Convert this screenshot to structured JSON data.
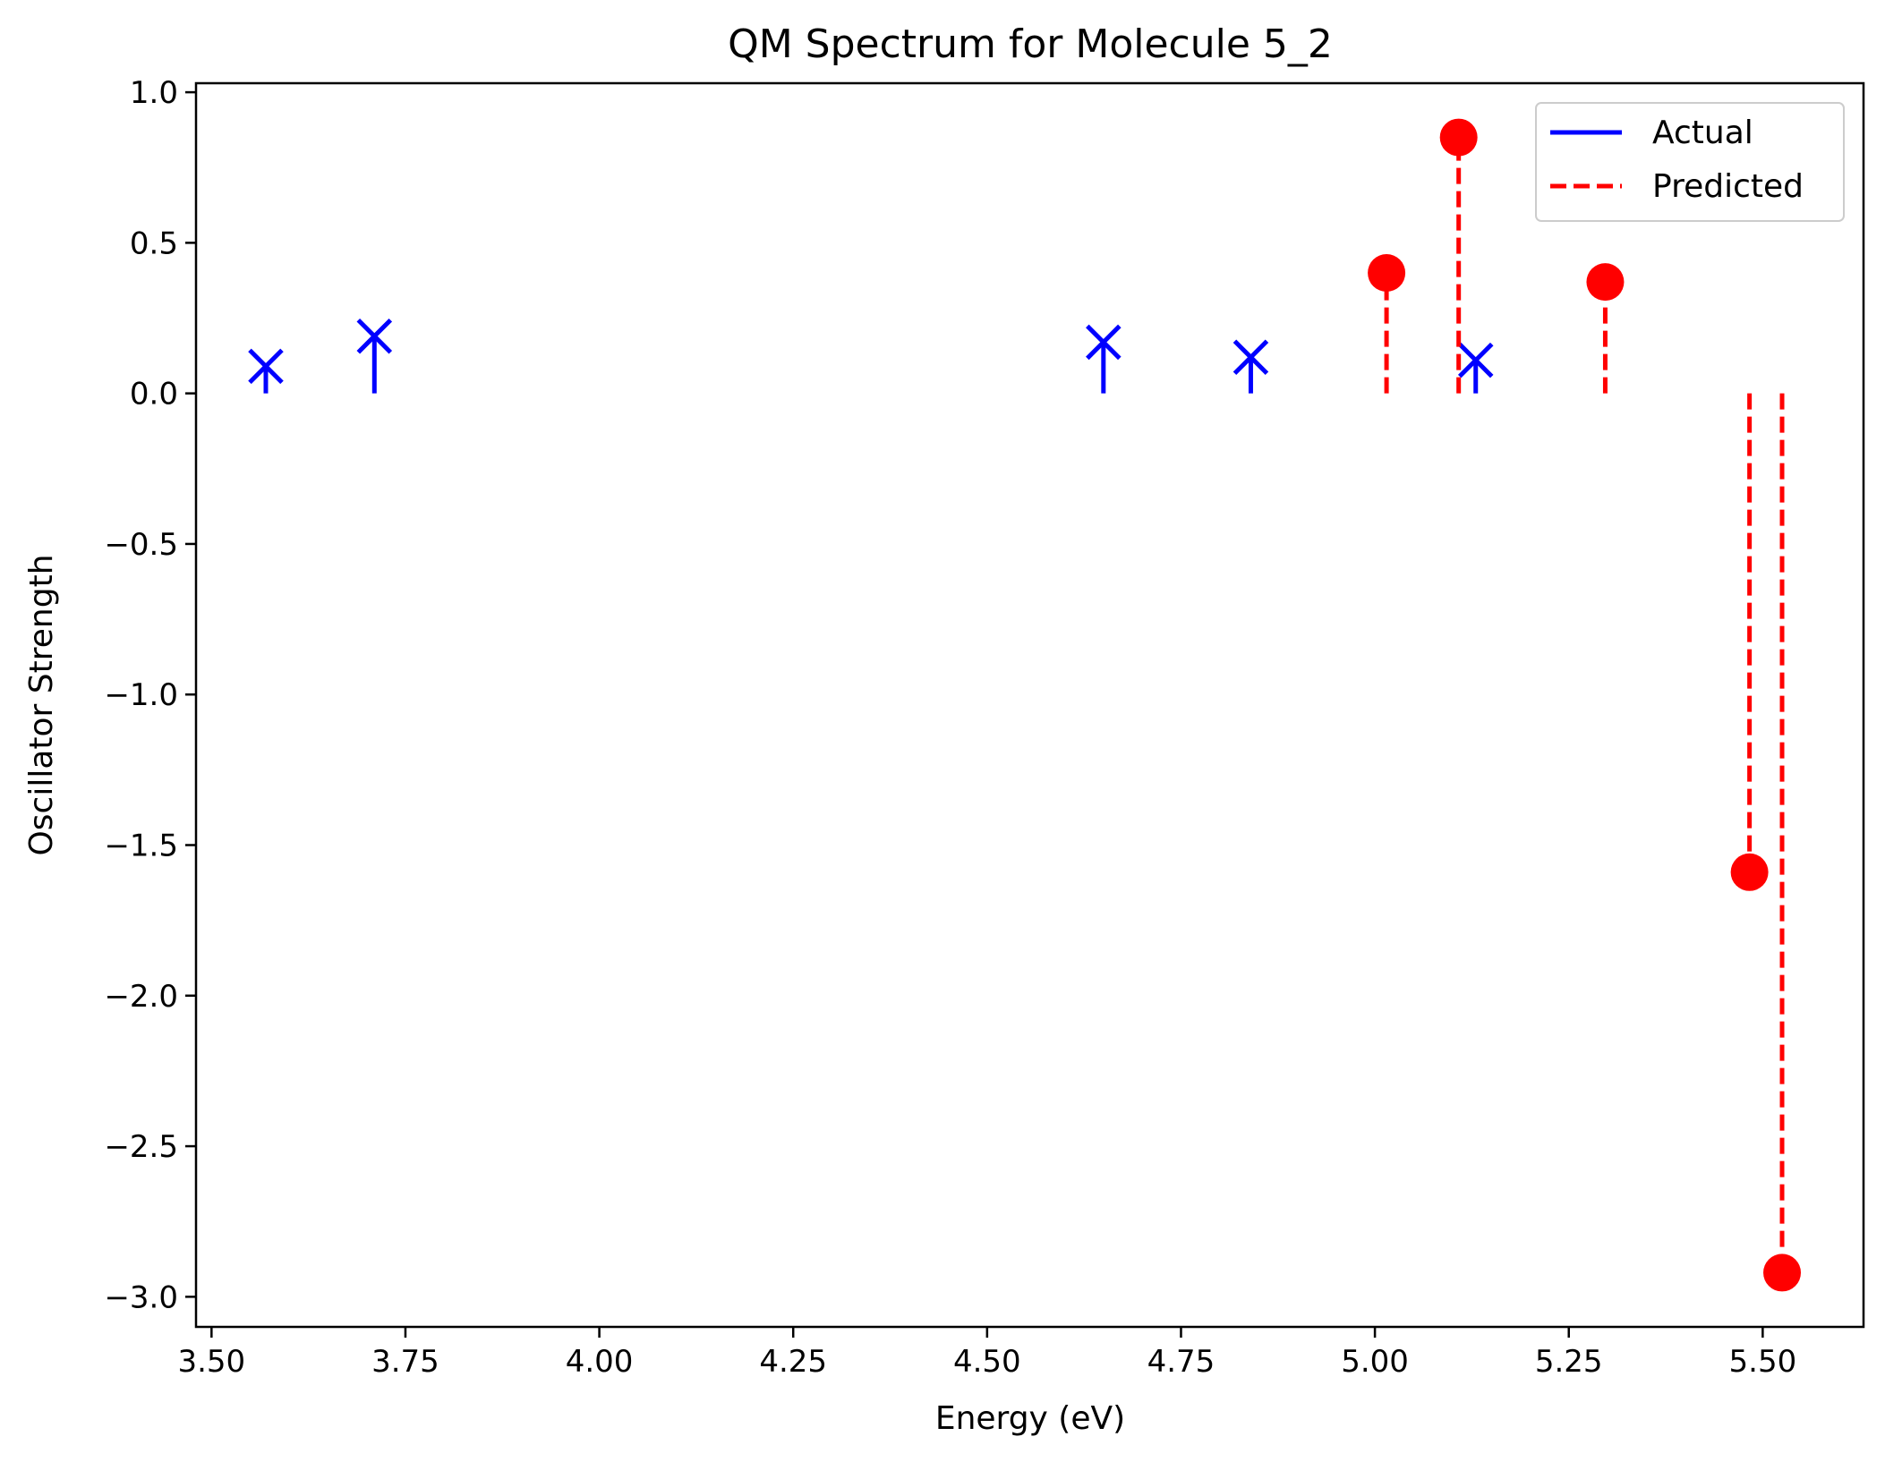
{
  "chart_data": {
    "type": "stem",
    "title": "QM Spectrum for Molecule 5_2",
    "xlabel": "Energy (eV)",
    "ylabel": "Oscillator Strength",
    "xlim": [
      3.48,
      5.63
    ],
    "ylim": [
      -3.1,
      1.03
    ],
    "grid": false,
    "legend_position": "top-right",
    "x_ticks": [
      3.5,
      3.75,
      4.0,
      4.25,
      4.5,
      4.75,
      5.0,
      5.25,
      5.5
    ],
    "y_ticks": [
      1.0,
      0.5,
      0.0,
      -0.5,
      -1.0,
      -1.5,
      -2.0,
      -2.5,
      -3.0
    ],
    "x_tick_labels": [
      "3.50",
      "3.75",
      "4.00",
      "4.25",
      "4.50",
      "4.75",
      "5.00",
      "5.25",
      "5.50"
    ],
    "y_tick_labels": [
      "1.0",
      "0.5",
      "0.0",
      "−0.5",
      "−1.0",
      "−1.5",
      "−2.0",
      "−2.5",
      "−3.0"
    ],
    "series": [
      {
        "name": "Actual",
        "color": "#0000ff",
        "linestyle": "solid",
        "marker": "x",
        "x": [
          3.57,
          3.71,
          4.65,
          4.84,
          5.13
        ],
        "y": [
          0.09,
          0.19,
          0.17,
          0.12,
          0.11
        ]
      },
      {
        "name": "Predicted",
        "color": "#ff0000",
        "linestyle": "dashed",
        "marker": "circle",
        "x": [
          5.015,
          5.108,
          5.297,
          5.483,
          5.525
        ],
        "y": [
          0.4,
          0.85,
          0.37,
          -1.59,
          -2.92
        ]
      }
    ]
  }
}
